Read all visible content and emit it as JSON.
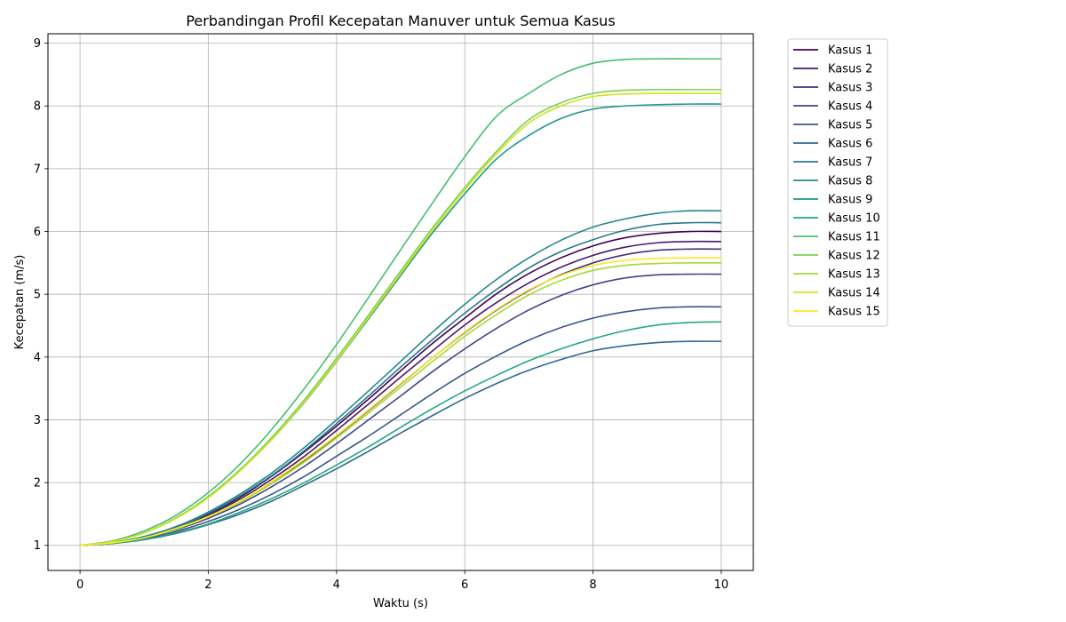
{
  "chart_data": {
    "type": "line",
    "title": "Perbandingan Profil Kecepatan Manuver untuk Semua Kasus",
    "xlabel": "Waktu (s)",
    "ylabel": "Kecepatan (m/s)",
    "xlim": [
      -0.5,
      10.5
    ],
    "ylim": [
      0.6,
      9.15
    ],
    "x_ticks": [
      0,
      2,
      4,
      6,
      8,
      10
    ],
    "y_ticks": [
      1,
      2,
      3,
      4,
      5,
      6,
      7,
      8,
      9
    ],
    "grid": true,
    "legend_position": "upper-right-outside",
    "x": [
      0,
      0.5,
      1,
      1.5,
      2,
      2.5,
      3,
      3.5,
      4,
      4.5,
      5,
      5.5,
      6,
      6.5,
      7,
      7.5,
      8,
      8.5,
      9,
      9.5,
      10
    ],
    "series": [
      {
        "name": "Kasus 1",
        "color": "#440154",
        "values": [
          1.0,
          1.04,
          1.13,
          1.28,
          1.5,
          1.77,
          2.11,
          2.49,
          2.9,
          3.33,
          3.78,
          4.22,
          4.62,
          5.01,
          5.33,
          5.58,
          5.77,
          5.9,
          5.97,
          6.0,
          6.0
        ]
      },
      {
        "name": "Kasus 2",
        "color": "#481a6c",
        "values": [
          1.0,
          1.04,
          1.13,
          1.28,
          1.48,
          1.74,
          2.06,
          2.42,
          2.83,
          3.25,
          3.68,
          4.1,
          4.51,
          4.87,
          5.18,
          5.43,
          5.62,
          5.75,
          5.82,
          5.84,
          5.84
        ]
      },
      {
        "name": "Kasus 3",
        "color": "#472f7d",
        "values": [
          1.0,
          1.04,
          1.12,
          1.26,
          1.46,
          1.7,
          2.0,
          2.35,
          2.74,
          3.15,
          3.57,
          3.99,
          4.39,
          4.75,
          5.06,
          5.31,
          5.5,
          5.63,
          5.7,
          5.72,
          5.72
        ]
      },
      {
        "name": "Kasus 4",
        "color": "#414487",
        "values": [
          1.0,
          1.04,
          1.12,
          1.25,
          1.43,
          1.66,
          1.94,
          2.26,
          2.62,
          3.0,
          3.38,
          3.77,
          4.13,
          4.46,
          4.75,
          4.98,
          5.15,
          5.26,
          5.31,
          5.32,
          5.32
        ]
      },
      {
        "name": "Kasus 5",
        "color": "#39568c",
        "values": [
          1.0,
          1.03,
          1.1,
          1.22,
          1.38,
          1.58,
          1.82,
          2.1,
          2.42,
          2.74,
          3.08,
          3.42,
          3.74,
          4.02,
          4.27,
          4.47,
          4.62,
          4.72,
          4.78,
          4.8,
          4.8
        ]
      },
      {
        "name": "Kasus 6",
        "color": "#31688e",
        "values": [
          1.0,
          1.03,
          1.09,
          1.19,
          1.33,
          1.5,
          1.71,
          1.96,
          2.22,
          2.5,
          2.79,
          3.07,
          3.34,
          3.58,
          3.79,
          3.96,
          4.1,
          4.18,
          4.23,
          4.25,
          4.25
        ]
      },
      {
        "name": "Kasus 7",
        "color": "#2a788e",
        "values": [
          1.0,
          1.04,
          1.14,
          1.29,
          1.51,
          1.79,
          2.12,
          2.51,
          2.94,
          3.38,
          3.84,
          4.28,
          4.7,
          5.08,
          5.42,
          5.68,
          5.87,
          6.02,
          6.11,
          6.14,
          6.14
        ]
      },
      {
        "name": "Kasus 8",
        "color": "#23888e",
        "values": [
          1.0,
          1.04,
          1.14,
          1.3,
          1.53,
          1.82,
          2.16,
          2.56,
          3.0,
          3.46,
          3.93,
          4.4,
          4.84,
          5.24,
          5.58,
          5.86,
          6.07,
          6.2,
          6.29,
          6.33,
          6.33
        ]
      },
      {
        "name": "Kasus 9",
        "color": "#1f988b",
        "values": [
          1.0,
          1.06,
          1.2,
          1.44,
          1.77,
          2.2,
          2.7,
          3.28,
          3.93,
          4.61,
          5.3,
          5.98,
          6.6,
          7.16,
          7.53,
          7.8,
          7.95,
          8.0,
          8.02,
          8.03,
          8.03
        ]
      },
      {
        "name": "Kasus 10",
        "color": "#22a884",
        "values": [
          1.0,
          1.03,
          1.09,
          1.2,
          1.34,
          1.53,
          1.75,
          2.0,
          2.28,
          2.57,
          2.88,
          3.18,
          3.46,
          3.71,
          3.94,
          4.13,
          4.29,
          4.42,
          4.51,
          4.55,
          4.56
        ]
      },
      {
        "name": "Kasus 11",
        "color": "#44bf70",
        "values": [
          1.0,
          1.07,
          1.23,
          1.48,
          1.84,
          2.3,
          2.86,
          3.5,
          4.2,
          4.95,
          5.71,
          6.46,
          7.19,
          7.84,
          8.2,
          8.5,
          8.68,
          8.74,
          8.75,
          8.75,
          8.75
        ]
      },
      {
        "name": "Kasus 12",
        "color": "#7ad151",
        "values": [
          1.0,
          1.06,
          1.2,
          1.44,
          1.78,
          2.21,
          2.73,
          3.32,
          3.98,
          4.67,
          5.37,
          6.06,
          6.7,
          7.28,
          7.78,
          8.05,
          8.2,
          8.25,
          8.26,
          8.26,
          8.26
        ]
      },
      {
        "name": "Kasus 13",
        "color": "#a5db36",
        "values": [
          1.0,
          1.04,
          1.12,
          1.26,
          1.45,
          1.69,
          1.99,
          2.33,
          2.71,
          3.11,
          3.52,
          3.93,
          4.33,
          4.68,
          4.99,
          5.22,
          5.38,
          5.46,
          5.49,
          5.5,
          5.5
        ]
      },
      {
        "name": "Kasus 14",
        "color": "#d2e21b",
        "values": [
          1.0,
          1.06,
          1.2,
          1.43,
          1.76,
          2.19,
          2.7,
          3.29,
          3.94,
          4.63,
          5.33,
          6.02,
          6.66,
          7.24,
          7.73,
          8.0,
          8.15,
          8.19,
          8.2,
          8.2,
          8.2
        ]
      },
      {
        "name": "Kasus 15",
        "color": "#fde725",
        "values": [
          1.0,
          1.04,
          1.12,
          1.27,
          1.46,
          1.71,
          2.02,
          2.37,
          2.75,
          3.16,
          3.58,
          3.99,
          4.4,
          4.76,
          5.07,
          5.3,
          5.46,
          5.54,
          5.57,
          5.58,
          5.58
        ]
      }
    ]
  }
}
